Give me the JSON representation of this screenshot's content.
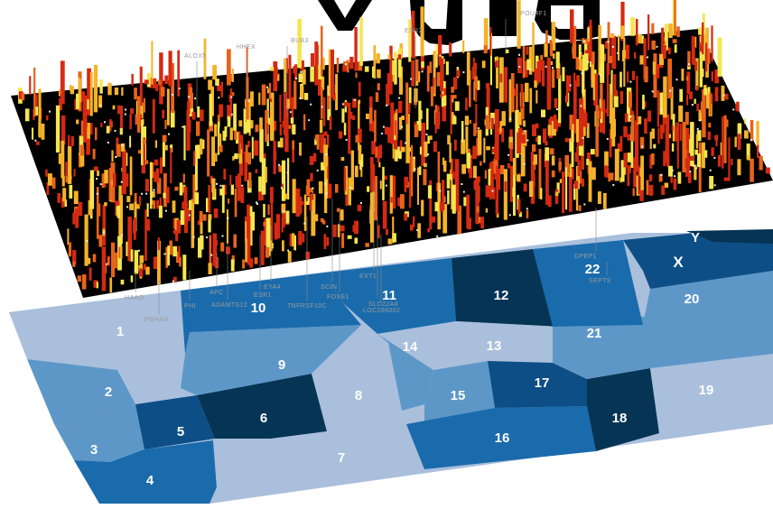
{
  "colors": {
    "heatmap_bg": "#000000",
    "bar_high": "#d42a12",
    "bar_mid": "#e8641a",
    "bar_low": "#f4b32a",
    "bar_peak": "#f5e64e",
    "map_shades": [
      "#a9bfdc",
      "#5d97c8",
      "#1a6bab",
      "#0d4e86",
      "#063454"
    ],
    "label_gray": "#9a9a9a"
  },
  "genes": [
    {
      "label": "ALOX5"
    },
    {
      "label": "HHEX"
    },
    {
      "label": "BUB3"
    },
    {
      "label": "ESR2"
    },
    {
      "label": "POU4F1"
    },
    {
      "label": "DPEP1"
    },
    {
      "label": "SEPT9"
    },
    {
      "label": "EXT1"
    },
    {
      "label": "SCIN"
    },
    {
      "label": "FOXE1"
    },
    {
      "label": "TNFRSF10C"
    },
    {
      "label": "EYA4"
    },
    {
      "label": "ESR1"
    },
    {
      "label": "ADAMTS12"
    },
    {
      "label": "APC"
    },
    {
      "label": "SLC22A4"
    },
    {
      "label": "LOC286002"
    },
    {
      "label": "HAAO"
    },
    {
      "label": "PHI"
    },
    {
      "label": "PGHAN"
    }
  ],
  "chromosomes": [
    {
      "id": "1",
      "label": "1",
      "shade": 0
    },
    {
      "id": "2",
      "label": "2",
      "shade": 1
    },
    {
      "id": "3",
      "label": "3",
      "shade": 1
    },
    {
      "id": "4",
      "label": "4",
      "shade": 2
    },
    {
      "id": "5",
      "label": "5",
      "shade": 3
    },
    {
      "id": "6",
      "label": "6",
      "shade": 4
    },
    {
      "id": "7",
      "label": "7",
      "shade": 0
    },
    {
      "id": "8",
      "label": "8",
      "shade": 0
    },
    {
      "id": "9",
      "label": "9",
      "shade": 1
    },
    {
      "id": "10",
      "label": "10",
      "shade": 2
    },
    {
      "id": "11",
      "label": "11",
      "shade": 2
    },
    {
      "id": "12",
      "label": "12",
      "shade": 4
    },
    {
      "id": "13",
      "label": "13",
      "shade": 0
    },
    {
      "id": "14",
      "label": "14",
      "shade": 1
    },
    {
      "id": "15",
      "label": "15",
      "shade": 1
    },
    {
      "id": "16",
      "label": "16",
      "shade": 2
    },
    {
      "id": "17",
      "label": "17",
      "shade": 3
    },
    {
      "id": "18",
      "label": "18",
      "shade": 4
    },
    {
      "id": "19",
      "label": "19",
      "shade": 0
    },
    {
      "id": "20",
      "label": "20",
      "shade": 1
    },
    {
      "id": "21",
      "label": "21",
      "shade": 1
    },
    {
      "id": "22",
      "label": "22",
      "shade": 2
    },
    {
      "id": "X",
      "label": "X",
      "shade": 3
    },
    {
      "id": "Y",
      "label": "Y",
      "shade": 4
    }
  ]
}
